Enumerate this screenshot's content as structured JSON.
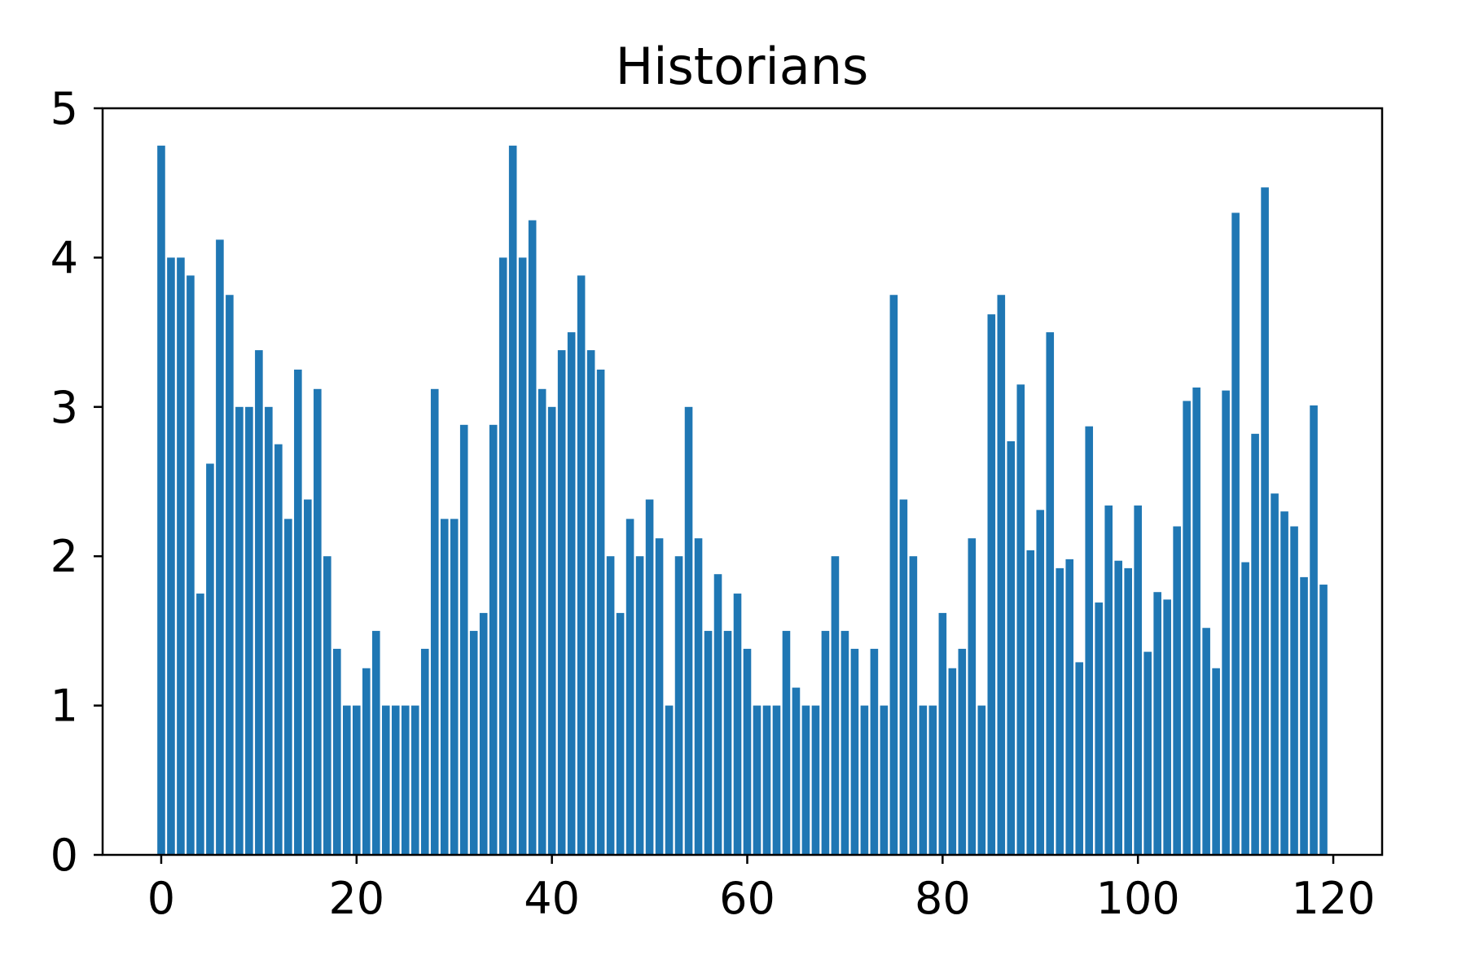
{
  "chart_data": {
    "type": "bar",
    "title": "Historians",
    "xlabel": "",
    "ylabel": "",
    "xlim": [
      -6,
      125
    ],
    "ylim": [
      0,
      5
    ],
    "xticks": [
      0,
      20,
      40,
      60,
      80,
      100,
      120
    ],
    "yticks": [
      0,
      1,
      2,
      3,
      4,
      5
    ],
    "grid": false,
    "legend": "none",
    "bar_color": "#1f77b4",
    "x": [
      0,
      1,
      2,
      3,
      4,
      5,
      6,
      7,
      8,
      9,
      10,
      11,
      12,
      13,
      14,
      15,
      16,
      17,
      18,
      19,
      20,
      21,
      22,
      23,
      24,
      25,
      26,
      27,
      28,
      29,
      30,
      31,
      32,
      33,
      34,
      35,
      36,
      37,
      38,
      39,
      40,
      41,
      42,
      43,
      44,
      45,
      46,
      47,
      48,
      49,
      50,
      51,
      52,
      53,
      54,
      55,
      56,
      57,
      58,
      59,
      60,
      61,
      62,
      63,
      64,
      65,
      66,
      67,
      68,
      69,
      70,
      71,
      72,
      73,
      74,
      75,
      76,
      77,
      78,
      79,
      80,
      81,
      82,
      83,
      84,
      85,
      86,
      87,
      88,
      89,
      90,
      91,
      92,
      93,
      94,
      95,
      96,
      97,
      98,
      99,
      100,
      101,
      102,
      103,
      104,
      105,
      106,
      107,
      108,
      109,
      110,
      111,
      112,
      113,
      114,
      115,
      116,
      117,
      118,
      119
    ],
    "values": [
      4.75,
      4.0,
      4.0,
      3.88,
      1.75,
      2.62,
      4.12,
      3.75,
      3.0,
      3.0,
      3.38,
      3.0,
      2.75,
      2.25,
      3.25,
      2.38,
      3.12,
      2.0,
      1.38,
      1.0,
      1.0,
      1.25,
      1.5,
      1.0,
      1.0,
      1.0,
      1.0,
      1.38,
      3.12,
      2.25,
      2.25,
      2.88,
      1.5,
      1.62,
      2.88,
      4.0,
      4.75,
      4.0,
      4.25,
      3.12,
      3.0,
      3.38,
      3.5,
      3.88,
      3.38,
      3.25,
      2.0,
      1.62,
      2.25,
      2.0,
      2.38,
      2.12,
      1.0,
      2.0,
      3.0,
      2.12,
      1.5,
      1.88,
      1.5,
      1.75,
      1.38,
      1.0,
      1.0,
      1.0,
      1.5,
      1.12,
      1.0,
      1.0,
      1.5,
      2.0,
      1.5,
      1.38,
      1.0,
      1.38,
      1.0,
      3.75,
      2.38,
      2.0,
      1.0,
      1.0,
      1.62,
      1.25,
      1.38,
      2.12,
      1.0,
      3.62,
      3.75,
      2.77,
      3.15,
      2.04,
      2.31,
      3.5,
      1.92,
      1.98,
      1.29,
      2.87,
      1.69,
      2.34,
      1.97,
      1.92,
      2.34,
      1.36,
      1.76,
      1.71,
      2.2,
      3.04,
      3.13,
      1.52,
      1.25,
      3.11,
      4.3,
      1.96,
      2.82,
      4.47,
      2.42,
      2.3,
      2.2,
      1.86,
      3.01,
      1.81
    ]
  }
}
